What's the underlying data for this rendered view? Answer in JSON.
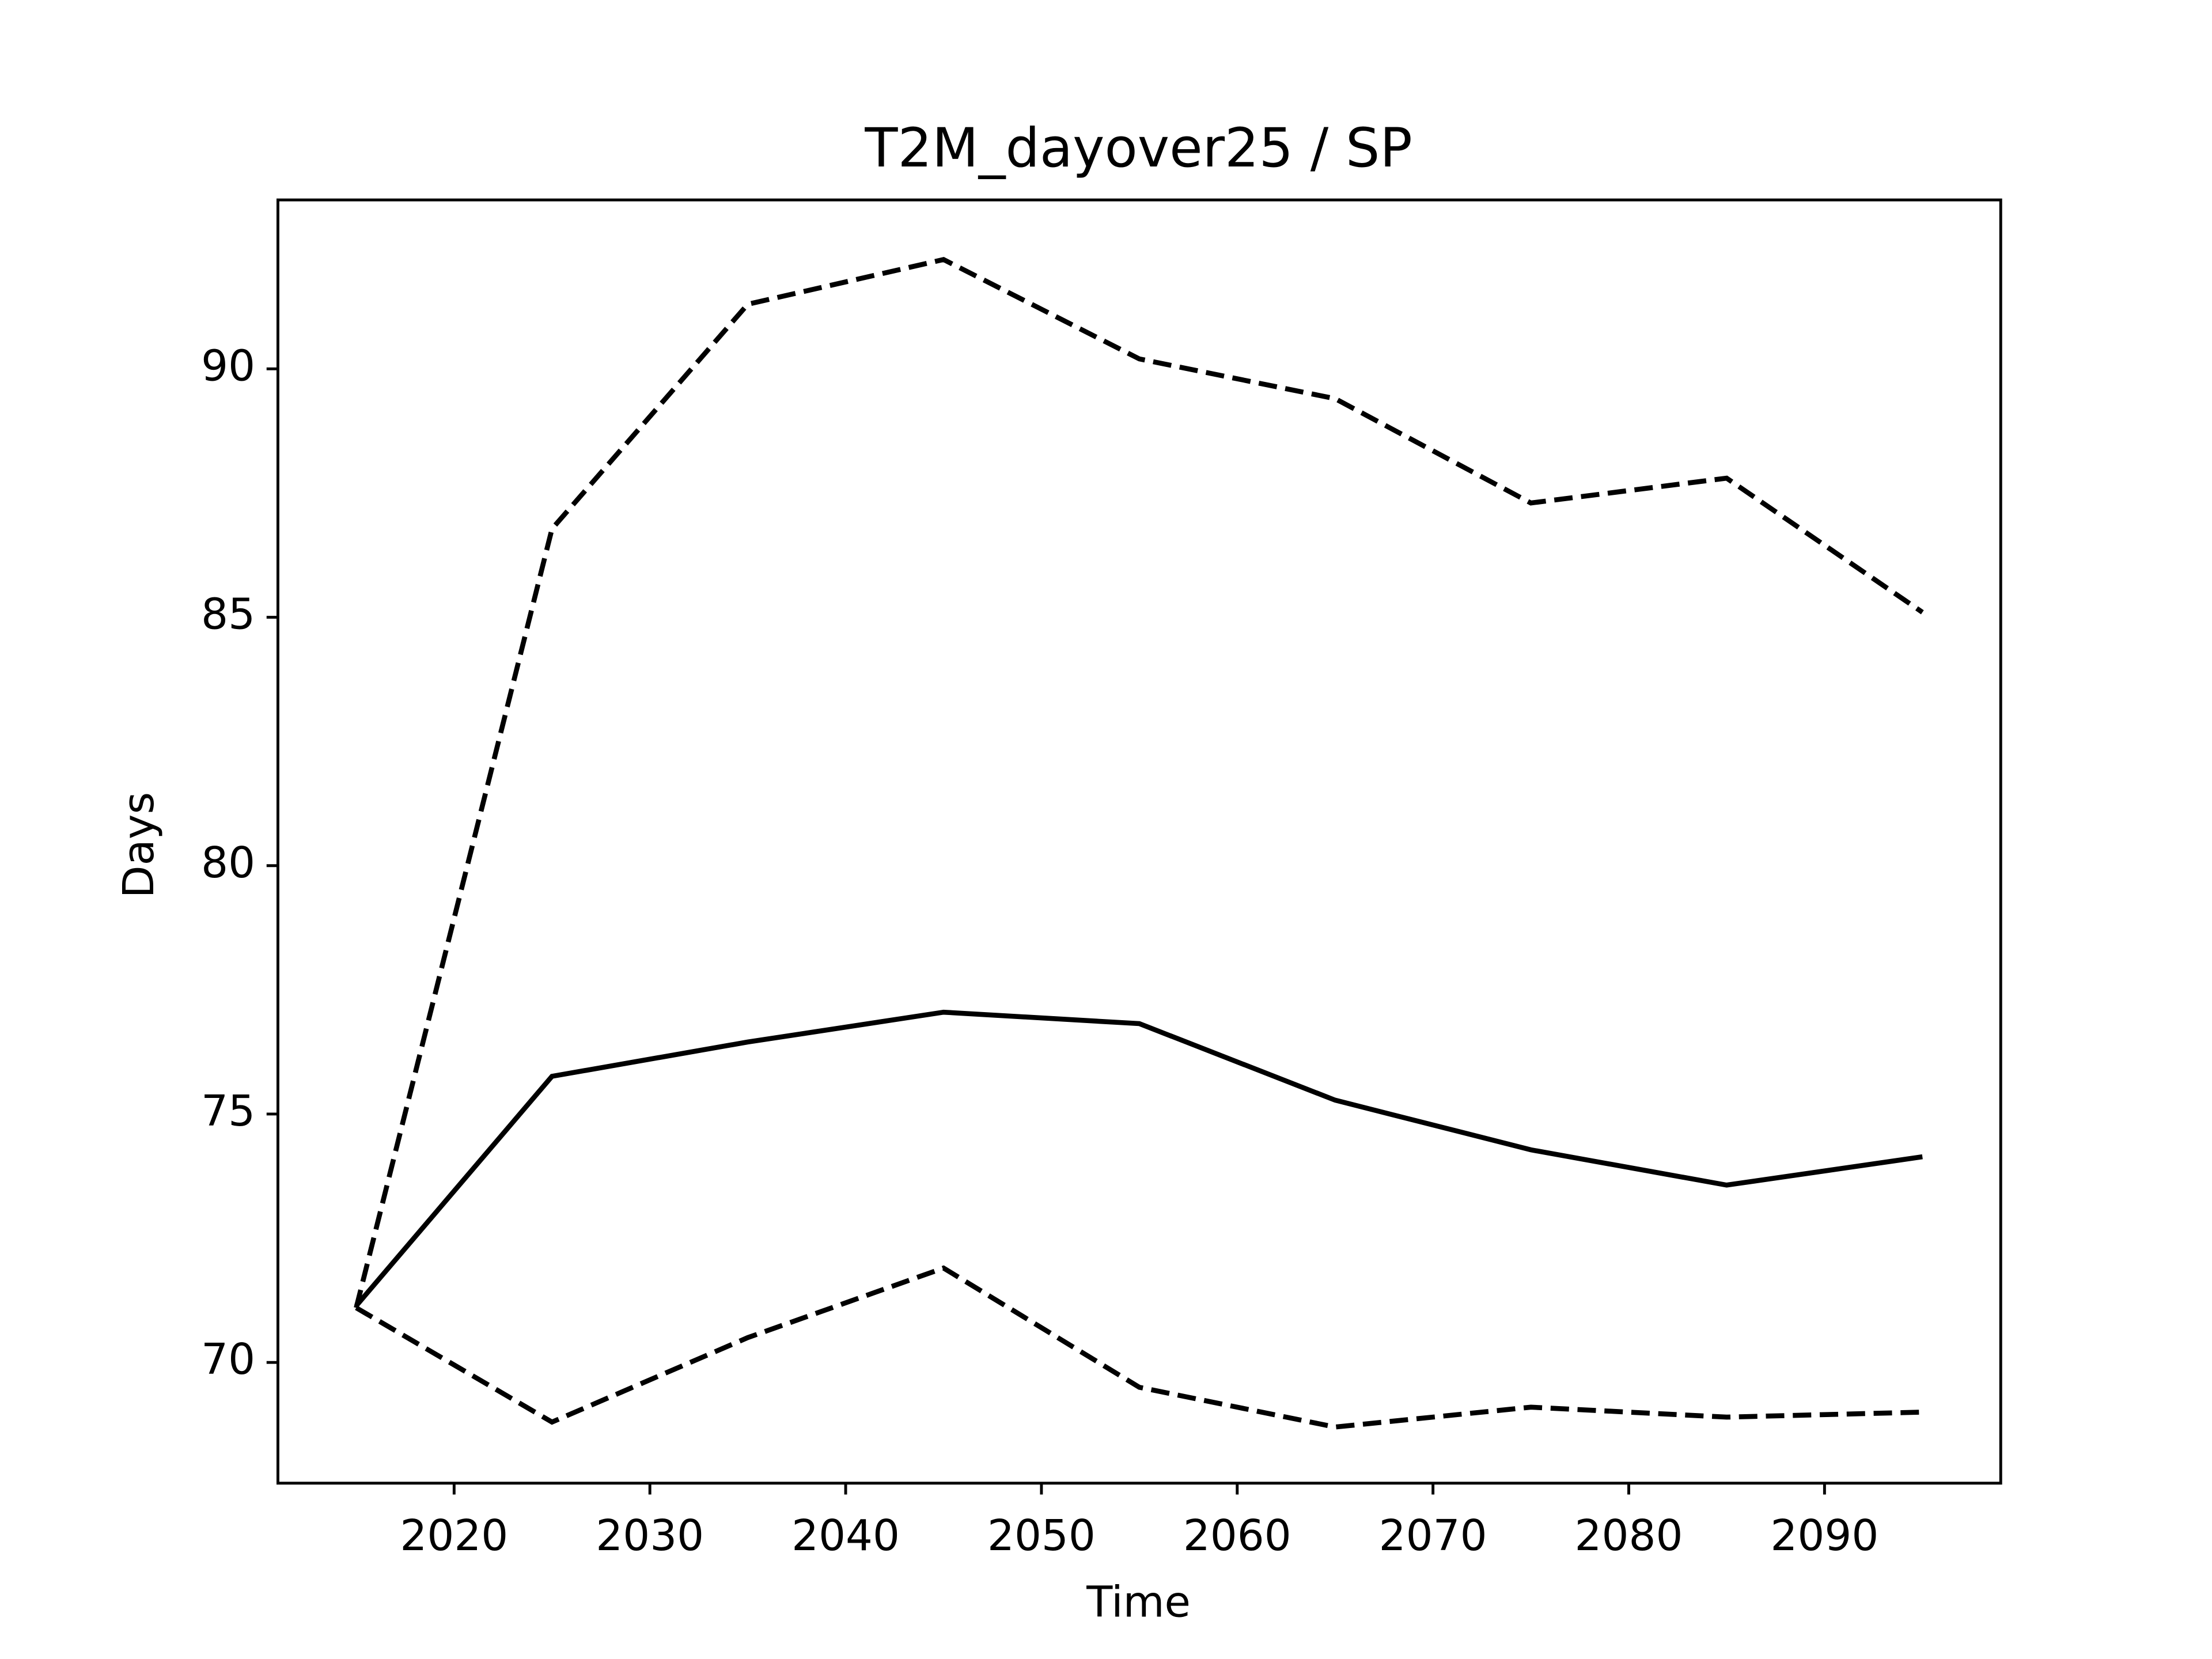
{
  "chart_data": {
    "type": "line",
    "title": "T2M_dayover25 / SP",
    "xlabel": "Time",
    "ylabel": "Days",
    "x": [
      2015,
      2025,
      2035,
      2045,
      2055,
      2065,
      2075,
      2085,
      2095
    ],
    "series": [
      {
        "color": "#000000",
        "linestyle": "solid",
        "values": [
          71.14,
          75.76,
          76.45,
          77.05,
          76.82,
          75.28,
          74.28,
          73.57,
          74.14
        ]
      },
      {
        "color": "#000000",
        "linestyle": "dashed",
        "values": [
          71.1,
          86.78,
          91.3,
          92.2,
          90.2,
          89.4,
          87.3,
          87.8,
          85.1
        ]
      },
      {
        "color": "#000000",
        "linestyle": "dashed",
        "values": [
          71.1,
          68.8,
          70.5,
          71.9,
          69.5,
          68.7,
          69.1,
          68.9,
          69.0
        ]
      }
    ],
    "xlim": [
      2011,
      2099
    ],
    "xticks": [
      2020,
      2030,
      2040,
      2050,
      2060,
      2070,
      2080,
      2090
    ],
    "ylim": [
      67.57,
      93.4
    ],
    "yticks": [
      70,
      75,
      80,
      85,
      90
    ],
    "grid": false
  }
}
